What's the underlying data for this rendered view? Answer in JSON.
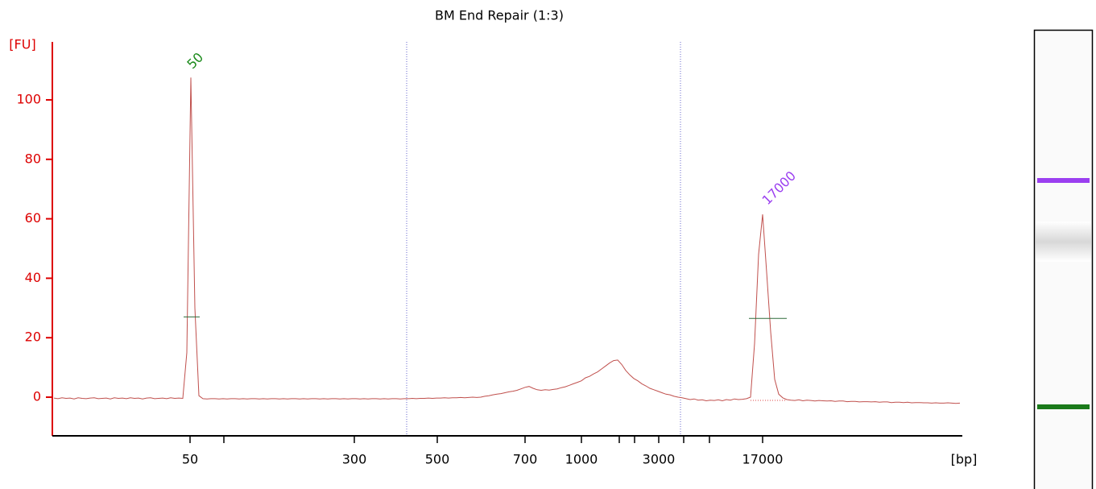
{
  "chart_data": {
    "type": "line",
    "title": "BM End Repair (1:3)",
    "ylabel": "[FU]",
    "xlabel": "[bp]",
    "ylim": [
      -13,
      119.5
    ],
    "yticks": [
      0,
      20,
      40,
      60,
      80,
      100
    ],
    "xticks": [
      50,
      null,
      300,
      500,
      700,
      1000,
      null,
      null,
      3000,
      null,
      null,
      17000
    ],
    "axis_color": "#dd0000",
    "series": [
      {
        "color": "#c0504d",
        "values": [
          -0.3,
          -0.5,
          -0.2,
          -0.4,
          -0.3,
          -0.6,
          -0.2,
          -0.4,
          -0.5,
          -0.3,
          -0.2,
          -0.5,
          -0.4,
          -0.3,
          -0.6,
          -0.2,
          -0.4,
          -0.3,
          -0.5,
          -0.2,
          -0.4,
          -0.3,
          -0.6,
          -0.3,
          -0.2,
          -0.5,
          -0.4,
          -0.3,
          -0.5,
          -0.2,
          -0.4,
          -0.3,
          -0.4,
          15,
          107.5,
          30,
          0.5,
          -0.5,
          -0.6,
          -0.5,
          -0.5,
          -0.6,
          -0.5,
          -0.6,
          -0.5,
          -0.5,
          -0.6,
          -0.5,
          -0.6,
          -0.5,
          -0.5,
          -0.6,
          -0.5,
          -0.6,
          -0.5,
          -0.5,
          -0.6,
          -0.5,
          -0.6,
          -0.5,
          -0.5,
          -0.6,
          -0.5,
          -0.6,
          -0.5,
          -0.5,
          -0.6,
          -0.5,
          -0.6,
          -0.5,
          -0.5,
          -0.6,
          -0.5,
          -0.6,
          -0.5,
          -0.5,
          -0.6,
          -0.5,
          -0.6,
          -0.5,
          -0.5,
          -0.6,
          -0.5,
          -0.6,
          -0.5,
          -0.5,
          -0.6,
          -0.5,
          -0.5,
          -0.4,
          -0.5,
          -0.4,
          -0.4,
          -0.3,
          -0.4,
          -0.3,
          -0.3,
          -0.2,
          -0.3,
          -0.2,
          -0.2,
          -0.1,
          -0.2,
          -0.1,
          0,
          -0.1,
          0,
          0.3,
          0.5,
          0.8,
          1,
          1.2,
          1.5,
          1.8,
          2,
          2.3,
          2.8,
          3.3,
          3.6,
          3,
          2.5,
          2.3,
          2.5,
          2.4,
          2.6,
          2.8,
          3.2,
          3.5,
          4,
          4.5,
          5,
          5.5,
          6.5,
          7,
          7.8,
          8.5,
          9.5,
          10.5,
          11.5,
          12.3,
          12.5,
          11,
          9,
          7.5,
          6.3,
          5.5,
          4.5,
          3.8,
          3,
          2.5,
          2,
          1.5,
          1,
          0.8,
          0.3,
          0,
          -0.2,
          -0.5,
          -0.8,
          -0.6,
          -1,
          -0.9,
          -1.2,
          -1,
          -1.1,
          -0.9,
          -1.2,
          -0.8,
          -1,
          -0.6,
          -0.8,
          -0.7,
          -0.5,
          0,
          18,
          48,
          61.5,
          42,
          22,
          6,
          1,
          -0.2,
          -0.8,
          -1,
          -1.1,
          -0.9,
          -1.2,
          -1,
          -1.1,
          -1.3,
          -1.1,
          -1.2,
          -1.3,
          -1.2,
          -1.4,
          -1.3,
          -1.3,
          -1.5,
          -1.4,
          -1.4,
          -1.6,
          -1.5,
          -1.5,
          -1.6,
          -1.5,
          -1.7,
          -1.6,
          -1.6,
          -1.8,
          -1.7,
          -1.7,
          -1.8,
          -1.7,
          -1.9,
          -1.8,
          -1.8,
          -1.9,
          -1.9,
          -2,
          -1.9,
          -2,
          -2,
          -1.9,
          -2,
          -2.1,
          -2
        ]
      }
    ],
    "half_height_markers": [
      27,
      26.5
    ],
    "annotations": [
      {
        "text": "50",
        "color": "#1a8a1a"
      },
      {
        "text": "17000",
        "color": "#9b3ff0"
      }
    ]
  }
}
